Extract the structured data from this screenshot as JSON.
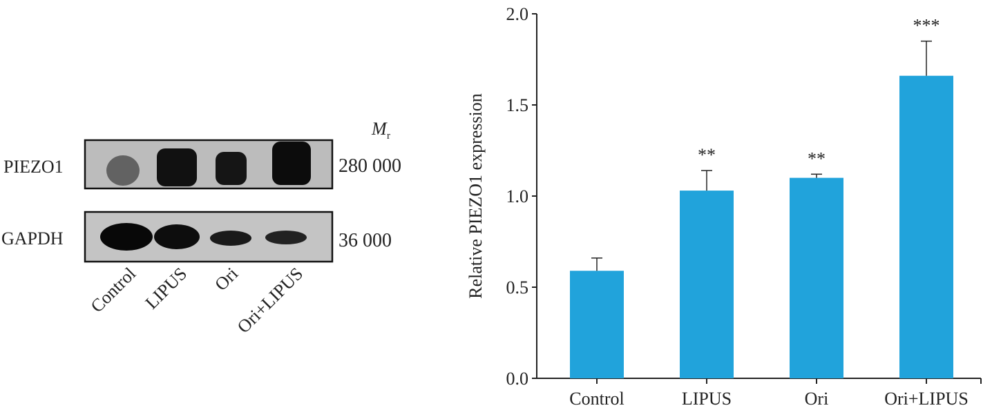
{
  "blot": {
    "mr_label": "M",
    "mr_sub": "r",
    "rows": [
      {
        "name": "PIEZO1",
        "mw": "280 000"
      },
      {
        "name": "GAPDH",
        "mw": "36 000"
      }
    ],
    "lanes": [
      "Control",
      "LIPUS",
      "Ori",
      "Ori+LIPUS"
    ]
  },
  "chart_data": {
    "type": "bar",
    "title": "",
    "xlabel": "",
    "ylabel": "Relative PIEZO1 expression",
    "categories": [
      "Control",
      "LIPUS",
      "Ori",
      "Ori+LIPUS"
    ],
    "values": [
      0.59,
      1.03,
      1.1,
      1.66
    ],
    "errors": [
      0.07,
      0.11,
      0.02,
      0.19
    ],
    "significance": [
      "",
      "**",
      "**",
      "***"
    ],
    "ylim": [
      0,
      2.0
    ],
    "yticks": [
      "0.0",
      "0.5",
      "1.0",
      "1.5",
      "2.0"
    ],
    "bar_color": "#21a3db",
    "grid": false
  }
}
